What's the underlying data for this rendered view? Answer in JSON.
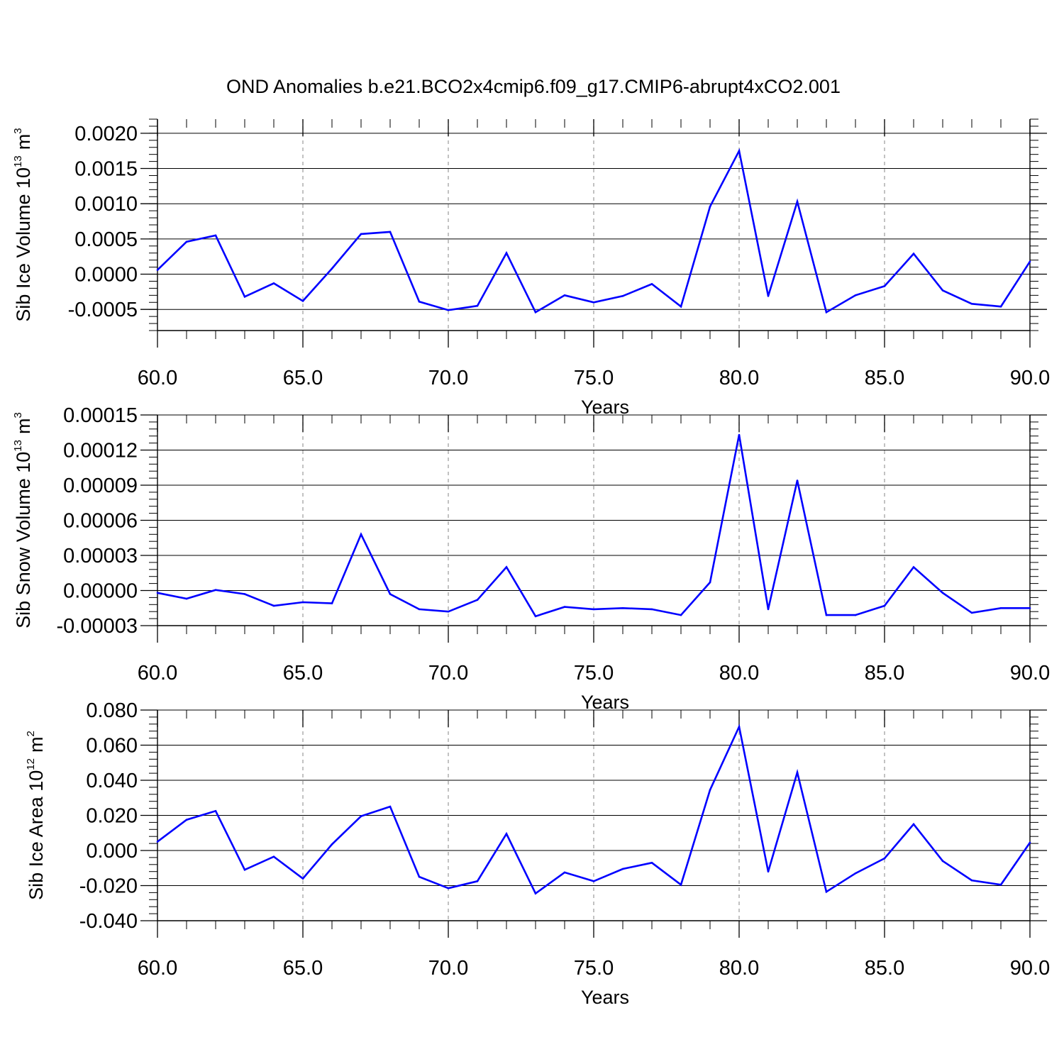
{
  "figure": {
    "title": "OND Anomalies b.e21.BCO2x4cmip6.f09_g17.CMIP6-abrupt4xCO2.001",
    "line_color": "#0000ff",
    "grid_color": "#999999"
  },
  "chart_data": [
    {
      "type": "line",
      "title": "",
      "xlabel": "Years",
      "ylabel": "Sib Ice Volume 10",
      "ylabel_exponent": "13",
      "ylabel_unit": "m",
      "ylabel_unit_exponent": "3",
      "xlim": [
        60,
        90
      ],
      "ylim": [
        -0.0008,
        0.0022
      ],
      "x_ticks": [
        60,
        65,
        70,
        75,
        80,
        85,
        90
      ],
      "x_tick_labels": [
        "60.0",
        "65.0",
        "70.0",
        "75.0",
        "80.0",
        "85.0",
        "90.0"
      ],
      "y_ticks": [
        -0.0005,
        0.0,
        0.0005,
        0.001,
        0.0015,
        0.002
      ],
      "y_tick_labels": [
        "-0.0005",
        "0.0000",
        "0.0005",
        "0.0010",
        "0.0015",
        "0.0020"
      ],
      "grid": "vertical dashed at major x ticks",
      "series": [
        {
          "x": [
            60,
            61,
            62,
            63,
            64,
            65,
            66,
            67,
            68,
            69,
            70,
            71,
            72,
            73,
            74,
            75,
            76,
            77,
            78,
            79,
            80,
            81,
            82,
            83,
            84,
            85,
            86,
            87,
            88,
            89,
            90
          ],
          "values": [
            6e-05,
            0.00046,
            0.00055,
            -0.00032,
            -0.00013,
            -0.00038,
            8e-05,
            0.00057,
            0.0006,
            -0.00039,
            -0.00051,
            -0.00045,
            0.0003,
            -0.00054,
            -0.0003,
            -0.0004,
            -0.00031,
            -0.00014,
            -0.00046,
            0.00096,
            0.00175,
            -0.00031,
            0.00103,
            -0.00054,
            -0.0003,
            -0.00017,
            0.00029,
            -0.00023,
            -0.00042,
            -0.00046,
            0.00018
          ]
        }
      ]
    },
    {
      "type": "line",
      "title": "",
      "xlabel": "Years",
      "ylabel": "Sib Snow Volume 10",
      "ylabel_exponent": "13",
      "ylabel_unit": "m",
      "ylabel_unit_exponent": "3",
      "xlim": [
        60,
        90
      ],
      "ylim": [
        -3e-05,
        0.00015
      ],
      "x_ticks": [
        60,
        65,
        70,
        75,
        80,
        85,
        90
      ],
      "x_tick_labels": [
        "60.0",
        "65.0",
        "70.0",
        "75.0",
        "80.0",
        "85.0",
        "90.0"
      ],
      "y_ticks": [
        -3e-05,
        0.0,
        3e-05,
        6e-05,
        9e-05,
        0.00012,
        0.00015
      ],
      "y_tick_labels": [
        "-0.00003",
        "0.00000",
        "0.00003",
        "0.00006",
        "0.00009",
        "0.00012",
        "0.00015"
      ],
      "grid": "vertical dashed at major x ticks",
      "series": [
        {
          "x": [
            60,
            61,
            62,
            63,
            64,
            65,
            66,
            67,
            68,
            69,
            70,
            71,
            72,
            73,
            74,
            75,
            76,
            77,
            78,
            79,
            80,
            81,
            82,
            83,
            84,
            85,
            86,
            87,
            88,
            89,
            90
          ],
          "values": [
            -2e-06,
            -7e-06,
            5e-07,
            -3e-06,
            -1.3e-05,
            -1e-05,
            -1.1e-05,
            4.8e-05,
            -3e-06,
            -1.6e-05,
            -1.8e-05,
            -8e-06,
            2e-05,
            -2.2e-05,
            -1.4e-05,
            -1.6e-05,
            -1.5e-05,
            -1.6e-05,
            -2.1e-05,
            7e-06,
            0.000133,
            -1.6e-05,
            9.4e-05,
            -2.1e-05,
            -2.1e-05,
            -1.3e-05,
            2e-05,
            -2e-06,
            -1.9e-05,
            -1.5e-05,
            -1.5e-05
          ]
        }
      ]
    },
    {
      "type": "line",
      "title": "",
      "xlabel": "Years",
      "ylabel": "Sib Ice Area 10",
      "ylabel_exponent": "12",
      "ylabel_unit": "m",
      "ylabel_unit_exponent": "2",
      "xlim": [
        60,
        90
      ],
      "ylim": [
        -0.04,
        0.08
      ],
      "x_ticks": [
        60,
        65,
        70,
        75,
        80,
        85,
        90
      ],
      "x_tick_labels": [
        "60.0",
        "65.0",
        "70.0",
        "75.0",
        "80.0",
        "85.0",
        "90.0"
      ],
      "y_ticks": [
        -0.04,
        -0.02,
        0.0,
        0.02,
        0.04,
        0.06,
        0.08
      ],
      "y_tick_labels": [
        "-0.040",
        "-0.020",
        "0.000",
        "0.020",
        "0.040",
        "0.060",
        "0.080"
      ],
      "grid": "vertical dashed at major x ticks",
      "series": [
        {
          "x": [
            60,
            61,
            62,
            63,
            64,
            65,
            66,
            67,
            68,
            69,
            70,
            71,
            72,
            73,
            74,
            75,
            76,
            77,
            78,
            79,
            80,
            81,
            82,
            83,
            84,
            85,
            86,
            87,
            88,
            89,
            90
          ],
          "values": [
            0.005,
            0.0175,
            0.0225,
            -0.011,
            -0.0035,
            -0.016,
            0.0035,
            0.0195,
            0.025,
            -0.015,
            -0.0215,
            -0.0175,
            0.0095,
            -0.0245,
            -0.0125,
            -0.0175,
            -0.0105,
            -0.007,
            -0.0195,
            0.0345,
            0.0705,
            -0.012,
            0.0445,
            -0.0235,
            -0.013,
            -0.0045,
            0.015,
            -0.006,
            -0.017,
            -0.0195,
            0.0045
          ]
        }
      ]
    }
  ]
}
